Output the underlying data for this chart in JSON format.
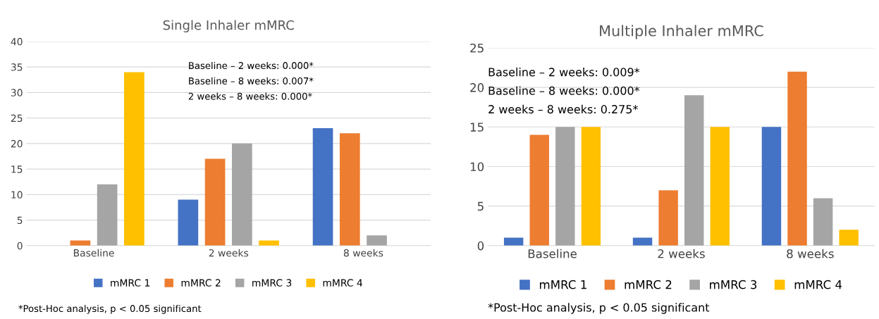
{
  "chart_data": [
    {
      "type": "bar",
      "title": "Single Inhaler mMRC",
      "categories": [
        "Baseline",
        "2 weeks",
        "8 weeks"
      ],
      "series": [
        {
          "name": "mMRC 1",
          "color": "#4472c4",
          "values": [
            0,
            9,
            23
          ]
        },
        {
          "name": "mMRC 2",
          "color": "#ed7d31",
          "values": [
            1,
            17,
            22
          ]
        },
        {
          "name": "mMRC 3",
          "color": "#a5a5a5",
          "values": [
            12,
            20,
            2
          ]
        },
        {
          "name": "mMRC 4",
          "color": "#ffc000",
          "values": [
            34,
            1,
            0
          ]
        }
      ],
      "ylim": [
        0,
        40
      ],
      "yticks": [
        0,
        5,
        10,
        15,
        20,
        25,
        30,
        35,
        40
      ],
      "grid": "y",
      "legend": "bottom",
      "annotations": [
        "Baseline – 2 weeks: 0.000*\nBaseline – 8 weeks: 0.007*\n2 weeks – 8 weeks: 0.000*",
        "*Post-Hoc analysis, p < 0.05 significant"
      ]
    },
    {
      "type": "bar",
      "title": "Multiple Inhaler mMRC",
      "categories": [
        "Baseline",
        "2 weeks",
        "8 weeks"
      ],
      "series": [
        {
          "name": "mMRC 1",
          "color": "#4472c4",
          "values": [
            1,
            1,
            15
          ]
        },
        {
          "name": "mMRC 2",
          "color": "#ed7d31",
          "values": [
            14,
            7,
            22
          ]
        },
        {
          "name": "mMRC 3",
          "color": "#a5a5a5",
          "values": [
            15,
            19,
            6
          ]
        },
        {
          "name": "mMRC 4",
          "color": "#ffc000",
          "values": [
            15,
            15,
            2
          ]
        }
      ],
      "ylim": [
        0,
        25
      ],
      "yticks": [
        0,
        5,
        10,
        15,
        20,
        25
      ],
      "grid": "y",
      "legend": "bottom",
      "annotations": [
        "Baseline – 2 weeks: 0.009*\nBaseline – 8 weeks: 0.000*\n2 weeks – 8 weeks: 0.275*",
        "*Post-Hoc analysis, p < 0.05 significant"
      ]
    }
  ]
}
